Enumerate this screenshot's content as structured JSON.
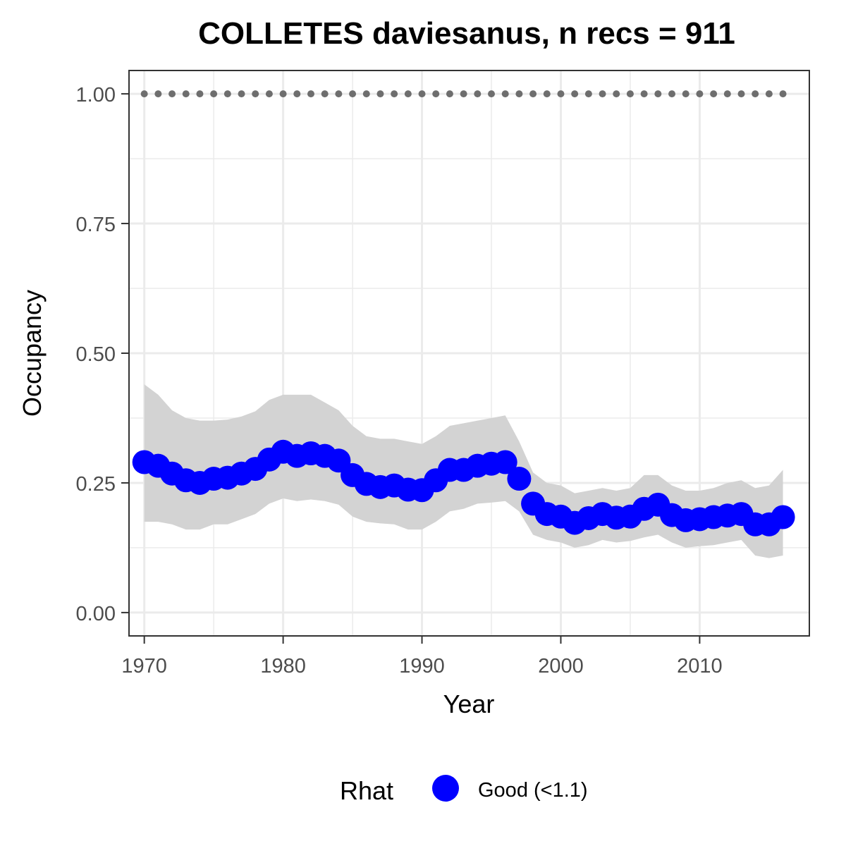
{
  "chart_data": {
    "type": "line",
    "title": "COLLETES daviesanus, n recs = 911",
    "xlabel": "Year",
    "ylabel": "Occupancy",
    "xlim": [
      1968.9,
      2017.9
    ],
    "ylim": [
      -0.045,
      1.045
    ],
    "x_ticks": [
      1970,
      1980,
      1990,
      2000,
      2010
    ],
    "x_tick_labels": [
      "1970",
      "1980",
      "1990",
      "2000",
      "2010"
    ],
    "y_ticks": [
      0,
      0.25,
      0.5,
      0.75,
      1.0
    ],
    "y_tick_labels": [
      "0.00",
      "0.25",
      "0.50",
      "0.75",
      "1.00"
    ],
    "grid": true,
    "legend": {
      "title": "Rhat",
      "position": "bottom",
      "entries": [
        {
          "label": "Good (<1.1)",
          "color": "#0000ff"
        }
      ]
    },
    "colors": {
      "points": "#0000ff",
      "ribbon": "#d3d3d3",
      "reference": "#6e6e6e",
      "grid": "#ebebeb",
      "panel_border": "#333333"
    },
    "reference_line": {
      "y": 1.0,
      "style": "dotted"
    },
    "x": [
      1970,
      1971,
      1972,
      1973,
      1974,
      1975,
      1976,
      1977,
      1978,
      1979,
      1980,
      1981,
      1982,
      1983,
      1984,
      1985,
      1986,
      1987,
      1988,
      1989,
      1990,
      1991,
      1992,
      1993,
      1994,
      1995,
      1996,
      1997,
      1998,
      1999,
      2000,
      2001,
      2002,
      2003,
      2004,
      2005,
      2006,
      2007,
      2008,
      2009,
      2010,
      2011,
      2012,
      2013,
      2014,
      2015,
      2016
    ],
    "series": [
      {
        "name": "Good (<1.1)",
        "values": [
          0.29,
          0.283,
          0.268,
          0.255,
          0.25,
          0.258,
          0.26,
          0.268,
          0.277,
          0.295,
          0.31,
          0.302,
          0.307,
          0.302,
          0.293,
          0.265,
          0.248,
          0.242,
          0.245,
          0.237,
          0.236,
          0.255,
          0.275,
          0.275,
          0.283,
          0.287,
          0.29,
          0.258,
          0.21,
          0.19,
          0.185,
          0.173,
          0.182,
          0.19,
          0.183,
          0.185,
          0.2,
          0.208,
          0.188,
          0.178,
          0.18,
          0.184,
          0.187,
          0.19,
          0.17,
          0.17,
          0.184
        ],
        "lower": [
          0.175,
          0.175,
          0.17,
          0.16,
          0.16,
          0.17,
          0.17,
          0.18,
          0.19,
          0.21,
          0.22,
          0.215,
          0.218,
          0.215,
          0.208,
          0.185,
          0.175,
          0.172,
          0.17,
          0.16,
          0.16,
          0.175,
          0.195,
          0.2,
          0.21,
          0.212,
          0.215,
          0.195,
          0.15,
          0.14,
          0.135,
          0.125,
          0.13,
          0.14,
          0.135,
          0.138,
          0.145,
          0.15,
          0.135,
          0.125,
          0.128,
          0.13,
          0.135,
          0.14,
          0.11,
          0.105,
          0.11
        ],
        "upper": [
          0.44,
          0.42,
          0.39,
          0.375,
          0.37,
          0.37,
          0.372,
          0.378,
          0.388,
          0.41,
          0.42,
          0.42,
          0.42,
          0.405,
          0.39,
          0.36,
          0.34,
          0.335,
          0.335,
          0.33,
          0.325,
          0.34,
          0.36,
          0.365,
          0.37,
          0.375,
          0.38,
          0.33,
          0.27,
          0.25,
          0.245,
          0.23,
          0.235,
          0.24,
          0.235,
          0.24,
          0.265,
          0.265,
          0.245,
          0.235,
          0.235,
          0.24,
          0.25,
          0.255,
          0.24,
          0.245,
          0.275
        ]
      }
    ]
  }
}
